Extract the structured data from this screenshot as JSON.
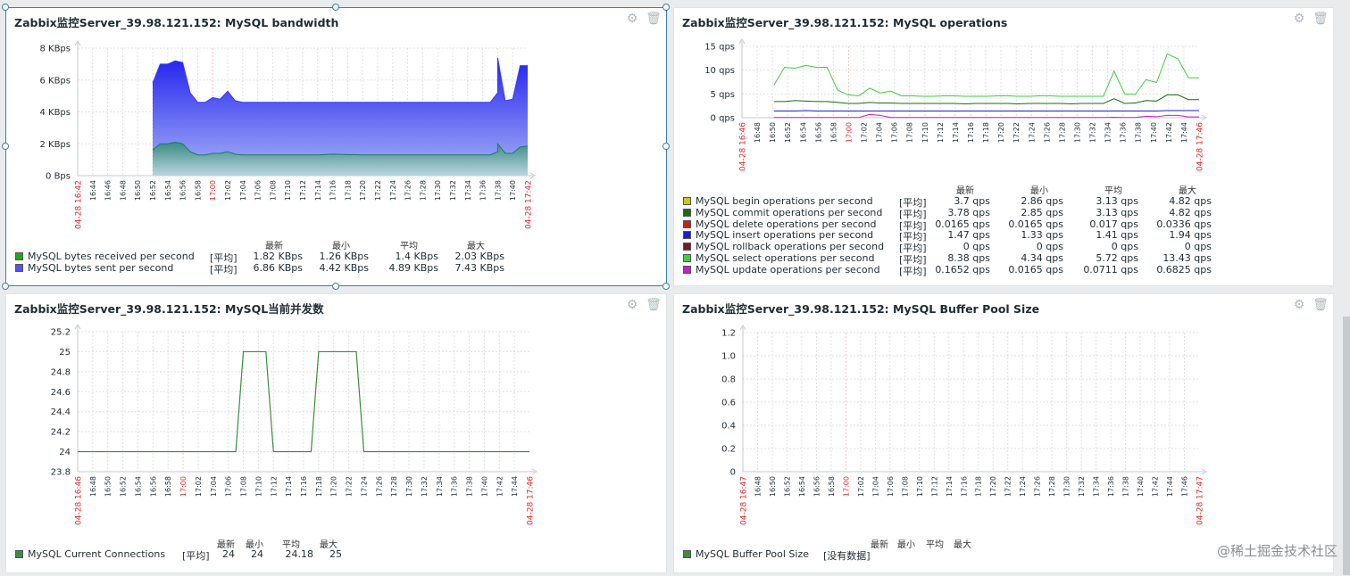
{
  "colors": {
    "accent": "#3a80b7",
    "received": "#1ea81e",
    "sent": "#3b3bf2",
    "begin": "#c8c820",
    "commit": "#156c15",
    "delete": "#c81e1e",
    "insert": "#1e1ec8",
    "rollback": "#6e1e1e",
    "select": "#3ecf3e",
    "update": "#c81ec8",
    "connections": "#3d8c3d",
    "buffer": "#3d8c3d",
    "red_label": "#e32727"
  },
  "icons": {
    "settings": "gear-icon",
    "delete": "trash-icon"
  },
  "watermark": "@稀土掘金技术社区",
  "widgets": {
    "bandwidth": {
      "title": "Zabbix监控Server_39.98.121.152: MySQL bandwidth",
      "headers": [
        "最新",
        "最小",
        "平均",
        "最大"
      ],
      "rows": [
        {
          "name": "MySQL bytes received per second",
          "func": "[平均]",
          "last": "1.82 KBps",
          "min": "1.26 KBps",
          "avg": "1.4 KBps",
          "max": "2.03 KBps"
        },
        {
          "name": "MySQL bytes sent per second",
          "func": "[平均]",
          "last": "6.86 KBps",
          "min": "4.42 KBps",
          "avg": "4.89 KBps",
          "max": "7.43 KBps"
        }
      ]
    },
    "operations": {
      "title": "Zabbix监控Server_39.98.121.152: MySQL operations",
      "headers": [
        "最新",
        "最小",
        "平均",
        "最大"
      ],
      "rows": [
        {
          "name": "MySQL begin operations per second",
          "func": "[平均]",
          "last": "3.7 qps",
          "min": "2.86 qps",
          "avg": "3.13 qps",
          "max": "4.82 qps"
        },
        {
          "name": "MySQL commit operations per second",
          "func": "[平均]",
          "last": "3.78 qps",
          "min": "2.85 qps",
          "avg": "3.13 qps",
          "max": "4.82 qps"
        },
        {
          "name": "MySQL delete operations per second",
          "func": "[平均]",
          "last": "0.0165 qps",
          "min": "0.0165 qps",
          "avg": "0.017 qps",
          "max": "0.0336 qps"
        },
        {
          "name": "MySQL insert operations per second",
          "func": "[平均]",
          "last": "1.47 qps",
          "min": "1.33 qps",
          "avg": "1.41 qps",
          "max": "1.94 qps"
        },
        {
          "name": "MySQL rollback operations per second",
          "func": "[平均]",
          "last": "0 qps",
          "min": "0 qps",
          "avg": "0 qps",
          "max": "0 qps"
        },
        {
          "name": "MySQL select operations per second",
          "func": "[平均]",
          "last": "8.38 qps",
          "min": "4.34 qps",
          "avg": "5.72 qps",
          "max": "13.43 qps"
        },
        {
          "name": "MySQL update operations per second",
          "func": "[平均]",
          "last": "0.1652 qps",
          "min": "0.0165 qps",
          "avg": "0.0711 qps",
          "max": "0.6825 qps"
        }
      ]
    },
    "connections": {
      "title": "Zabbix监控Server_39.98.121.152: MySQL当前并发数",
      "headers": [
        "最新",
        "最小",
        "平均",
        "最大"
      ],
      "rows": [
        {
          "name": "MySQL Current Connections",
          "func": "[平均]",
          "last": "24",
          "min": "24",
          "avg": "24.18",
          "max": "25"
        }
      ]
    },
    "buffer": {
      "title": "Zabbix监控Server_39.98.121.152: MySQL Buffer Pool Size",
      "headers": [
        "最新",
        "最小",
        "平均",
        "最大"
      ],
      "rows": [
        {
          "name": "MySQL Buffer Pool Size",
          "func": "[没有数据]",
          "last": "",
          "min": "",
          "avg": "",
          "max": ""
        }
      ]
    }
  },
  "chart_data": [
    {
      "type": "area",
      "title": "Zabbix监控Server_39.98.121.152: MySQL bandwidth",
      "y_unit": "KBps",
      "ylim": [
        0,
        8
      ],
      "yticks": [
        "0 Bps",
        "2 KBps",
        "4 KBps",
        "6 KBps",
        "8 KBps"
      ],
      "x_start_label": "04-28 16:42",
      "x_end_label": "04-28 17:42",
      "x_ticks": [
        "16:44",
        "16:46",
        "16:48",
        "16:50",
        "16:52",
        "16:54",
        "16:56",
        "16:58",
        "17:00",
        "17:02",
        "17:04",
        "17:06",
        "17:08",
        "17:10",
        "17:12",
        "17:14",
        "17:16",
        "17:18",
        "17:20",
        "17:22",
        "17:24",
        "17:26",
        "17:28",
        "17:30",
        "17:32",
        "17:34",
        "17:36",
        "17:38",
        "17:40"
      ],
      "x_red_ticks": [
        "17:00"
      ],
      "grid": true,
      "series": [
        {
          "name": "MySQL bytes sent per second",
          "x": [
            16.42,
            16.51,
            16.52,
            16.53,
            16.54,
            16.55,
            16.56,
            16.57,
            16.58,
            16.59,
            17.0,
            17.01,
            17.02,
            17.03,
            17.04,
            17.06,
            17.1,
            17.14,
            17.16,
            17.2,
            17.24,
            17.28,
            17.32,
            17.36,
            17.37,
            17.375,
            17.38,
            17.39,
            17.4,
            17.41,
            17.42
          ],
          "values": [
            null,
            null,
            5.8,
            7.0,
            7.0,
            7.2,
            7.1,
            5.2,
            4.6,
            4.6,
            4.9,
            4.8,
            5.3,
            4.7,
            4.6,
            4.6,
            4.6,
            4.6,
            4.6,
            4.6,
            4.6,
            4.6,
            4.6,
            4.6,
            4.6,
            5.2,
            7.4,
            4.7,
            4.8,
            6.9,
            6.9
          ]
        },
        {
          "name": "MySQL bytes received per second",
          "x": [
            16.42,
            16.51,
            16.52,
            16.53,
            16.54,
            16.55,
            16.56,
            16.57,
            16.58,
            16.59,
            17.0,
            17.01,
            17.02,
            17.03,
            17.04,
            17.06,
            17.1,
            17.14,
            17.16,
            17.2,
            17.24,
            17.28,
            17.32,
            17.36,
            17.37,
            17.375,
            17.38,
            17.39,
            17.4,
            17.41,
            17.42
          ],
          "values": [
            null,
            null,
            1.6,
            2.0,
            2.0,
            2.1,
            2.0,
            1.5,
            1.3,
            1.3,
            1.4,
            1.4,
            1.5,
            1.35,
            1.3,
            1.3,
            1.3,
            1.3,
            1.35,
            1.3,
            1.3,
            1.3,
            1.3,
            1.3,
            1.3,
            1.5,
            2.0,
            1.4,
            1.4,
            1.8,
            1.85
          ]
        }
      ]
    },
    {
      "type": "line",
      "title": "Zabbix监控Server_39.98.121.152: MySQL operations",
      "y_unit": "qps",
      "ylim": [
        0,
        15
      ],
      "yticks": [
        "0 qps",
        "5 qps",
        "10 qps",
        "15 qps"
      ],
      "x_start_label": "04-28 16:46",
      "x_end_label": "04-28 17:46",
      "x_ticks": [
        "16:48",
        "16:50",
        "16:52",
        "16:54",
        "16:56",
        "16:58",
        "17:00",
        "17:02",
        "17:04",
        "17:06",
        "17:08",
        "17:10",
        "17:12",
        "17:14",
        "17:16",
        "17:18",
        "17:20",
        "17:22",
        "17:24",
        "17:26",
        "17:28",
        "17:30",
        "17:32",
        "17:34",
        "17:36",
        "17:38",
        "17:40",
        "17:42",
        "17:44"
      ],
      "x_red_ticks": [
        "17:00"
      ],
      "grid": true,
      "series": [
        {
          "name": "MySQL select operations per second",
          "values": [
            null,
            null,
            null,
            6.8,
            10.6,
            10.4,
            11.0,
            10.6,
            10.6,
            5.8,
            4.8,
            4.6,
            6.2,
            5.2,
            5.6,
            4.6,
            4.6,
            4.5,
            4.5,
            4.6,
            4.6,
            4.5,
            4.5,
            4.5,
            4.6,
            4.6,
            4.5,
            4.5,
            4.6,
            4.6,
            4.5,
            4.5,
            4.5,
            4.5,
            4.5,
            9.8,
            5.0,
            4.9,
            8.0,
            7.4,
            13.4,
            12.4,
            8.4,
            8.4
          ]
        },
        {
          "name": "MySQL commit operations per second",
          "values": [
            null,
            null,
            null,
            3.4,
            3.4,
            3.6,
            3.5,
            3.4,
            3.4,
            3.2,
            3.0,
            3.0,
            3.2,
            3.1,
            3.1,
            3.0,
            3.0,
            3.0,
            3.0,
            3.0,
            3.0,
            2.9,
            3.0,
            3.0,
            3.0,
            3.0,
            2.9,
            3.0,
            3.0,
            3.0,
            3.0,
            2.9,
            3.0,
            3.0,
            3.0,
            4.0,
            3.0,
            3.1,
            3.6,
            3.5,
            4.8,
            4.8,
            3.8,
            3.8
          ]
        },
        {
          "name": "MySQL insert operations per second",
          "values": [
            null,
            null,
            null,
            1.4,
            1.4,
            1.4,
            1.5,
            1.4,
            1.4,
            1.4,
            1.4,
            1.4,
            1.4,
            1.4,
            1.4,
            1.4,
            1.4,
            1.4,
            1.4,
            1.4,
            1.4,
            1.4,
            1.4,
            1.4,
            1.4,
            1.4,
            1.4,
            1.4,
            1.4,
            1.4,
            1.4,
            1.4,
            1.4,
            1.4,
            1.4,
            1.4,
            1.4,
            1.4,
            1.4,
            1.4,
            1.5,
            1.5,
            1.5,
            1.5
          ]
        },
        {
          "name": "MySQL update operations per second",
          "values": [
            null,
            null,
            null,
            0.05,
            0.05,
            0.05,
            0.05,
            0.05,
            0.05,
            0.05,
            0.05,
            0.05,
            0.68,
            0.5,
            0.05,
            0.05,
            0.05,
            0.05,
            0.05,
            0.05,
            0.05,
            0.05,
            0.05,
            0.05,
            0.05,
            0.05,
            0.05,
            0.05,
            0.05,
            0.05,
            0.05,
            0.05,
            0.05,
            0.05,
            0.05,
            0.1,
            0.05,
            0.05,
            0.3,
            0.2,
            0.5,
            0.5,
            0.17,
            0.17
          ]
        }
      ]
    },
    {
      "type": "line",
      "title": "Zabbix监控Server_39.98.121.152: MySQL当前并发数",
      "ylim": [
        23.8,
        25.2
      ],
      "yticks": [
        "23.8",
        "24",
        "24.2",
        "24.4",
        "24.6",
        "24.8",
        "25",
        "25.2"
      ],
      "x_start_label": "04-28 16:46",
      "x_end_label": "04-28 17:46",
      "x_ticks": [
        "16:48",
        "16:50",
        "16:52",
        "16:54",
        "16:56",
        "16:58",
        "17:00",
        "17:02",
        "17:04",
        "17:06",
        "17:08",
        "17:10",
        "17:12",
        "17:14",
        "17:16",
        "17:18",
        "17:20",
        "17:22",
        "17:24",
        "17:26",
        "17:28",
        "17:30",
        "17:32",
        "17:34",
        "17:36",
        "17:38",
        "17:40",
        "17:42",
        "17:44"
      ],
      "x_red_ticks": [
        "17:00"
      ],
      "grid": true,
      "series": [
        {
          "name": "MySQL Current Connections",
          "x": [
            16.46,
            17.07,
            17.08,
            17.11,
            17.12,
            17.17,
            17.18,
            17.23,
            17.24,
            17.46
          ],
          "values": [
            24,
            24,
            25,
            25,
            24,
            24,
            25,
            25,
            24,
            24
          ]
        }
      ]
    },
    {
      "type": "line",
      "title": "Zabbix监控Server_39.98.121.152: MySQL Buffer Pool Size",
      "ylim": [
        0,
        1.2
      ],
      "yticks": [
        "0",
        "0.2",
        "0.4",
        "0.6",
        "0.8",
        "1.0",
        "1.2"
      ],
      "x_start_label": "04-28 16:47",
      "x_end_label": "04-28 17:47",
      "x_ticks": [
        "16:48",
        "16:50",
        "16:52",
        "16:54",
        "16:56",
        "16:58",
        "17:00",
        "17:02",
        "17:04",
        "17:06",
        "17:08",
        "17:10",
        "17:12",
        "17:14",
        "17:16",
        "17:18",
        "17:20",
        "17:22",
        "17:24",
        "17:26",
        "17:28",
        "17:30",
        "17:32",
        "17:34",
        "17:36",
        "17:38",
        "17:40",
        "17:42",
        "17:44",
        "17:46"
      ],
      "x_red_ticks": [
        "17:00"
      ],
      "grid": true,
      "series": []
    }
  ]
}
